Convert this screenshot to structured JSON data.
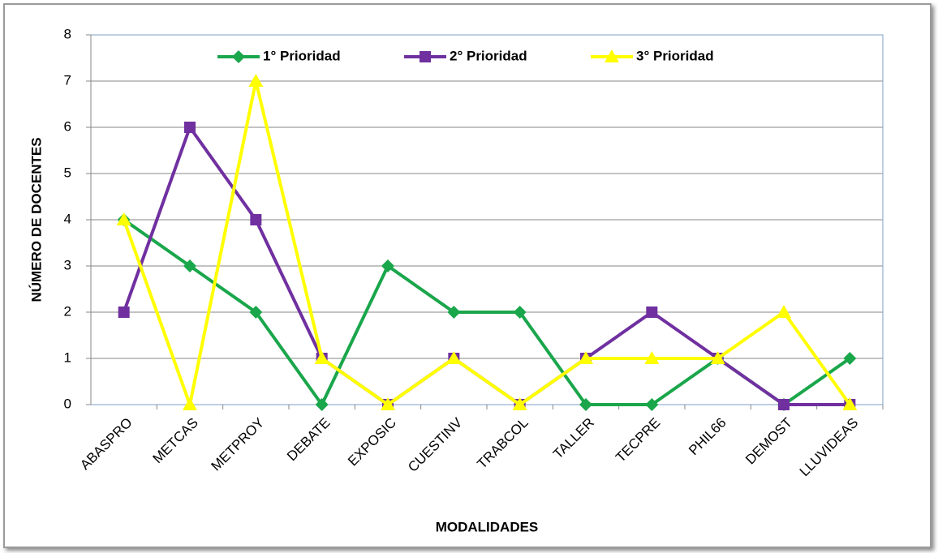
{
  "chart_data": {
    "type": "line",
    "x_label": "MODALIDADES",
    "y_label": "NÚMERO DE DOCENTES",
    "categories": [
      "ABASPRO",
      "METCAS",
      "METPROY",
      "DEBATE",
      "EXPOSIC",
      "CUESTINV",
      "TRABCOL",
      "TALLER",
      "TECPRE",
      "PHIL66",
      "DEMOST",
      "LLUVIDEAS"
    ],
    "series": [
      {
        "name": "1° Prioridad",
        "color": "#1aa64b",
        "marker": "diamond",
        "values": [
          4,
          3,
          2,
          0,
          3,
          2,
          2,
          0,
          0,
          1,
          0,
          1
        ]
      },
      {
        "name": "2° Prioridad",
        "color": "#7030a0",
        "marker": "square",
        "values": [
          2,
          6,
          4,
          1,
          0,
          1,
          0,
          1,
          2,
          1,
          0,
          0
        ]
      },
      {
        "name": "3° Prioridad",
        "color": "#ffff00",
        "marker": "triangle",
        "values": [
          4,
          0,
          7,
          1,
          0,
          1,
          0,
          1,
          1,
          1,
          2,
          0
        ]
      }
    ],
    "ylim": [
      0,
      8
    ],
    "yticks": [
      0,
      1,
      2,
      3,
      4,
      5,
      6,
      7,
      8
    ],
    "grid": true,
    "legend": "top"
  }
}
